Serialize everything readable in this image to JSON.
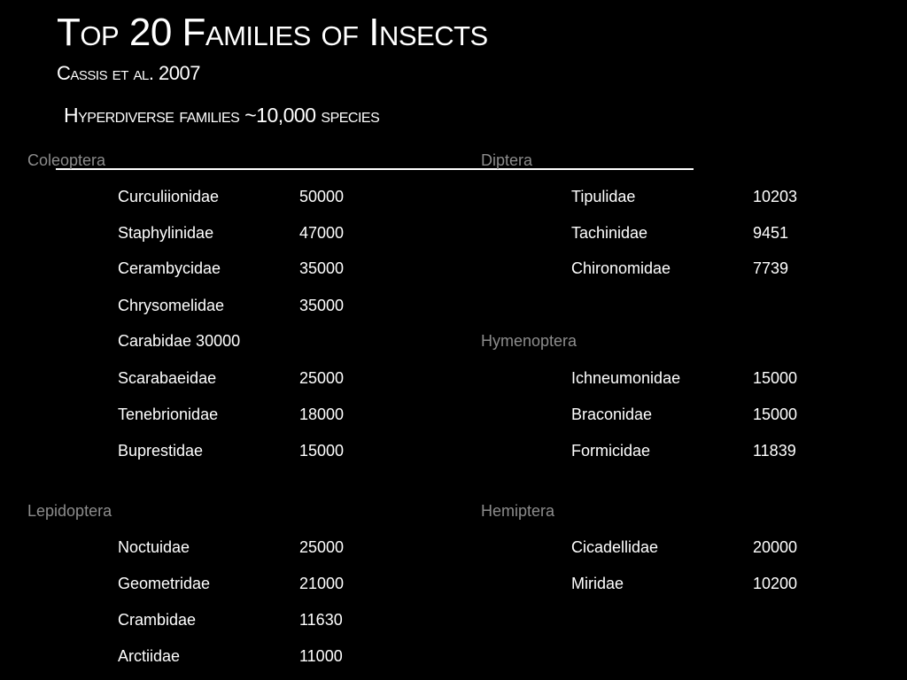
{
  "slide": {
    "title": "Top 20 Families of Insects",
    "subtitle": "Cassis et al. 2007",
    "heading": "Hyperdiverse families ~10,000 species"
  },
  "groups": {
    "coleoptera": {
      "order": "Coleoptera",
      "rows": [
        {
          "family": "Curculiionidae",
          "count": "50000"
        },
        {
          "family": "Staphylinidae",
          "count": "47000"
        },
        {
          "family": "Cerambycidae",
          "count": "35000"
        },
        {
          "family": "Chrysomelidae",
          "count": "35000"
        },
        {
          "family": "Carabidae 30000",
          "count": ""
        },
        {
          "family": "Scarabaeidae",
          "count": "25000"
        },
        {
          "family": "Tenebrionidae",
          "count": "18000"
        },
        {
          "family": "Buprestidae",
          "count": "15000"
        }
      ]
    },
    "lepidoptera": {
      "order": "Lepidoptera",
      "rows": [
        {
          "family": "Noctuidae",
          "count": "25000"
        },
        {
          "family": "Geometridae",
          "count": "21000"
        },
        {
          "family": "Crambidae",
          "count": "11630"
        },
        {
          "family": "Arctiidae",
          "count": "11000"
        }
      ]
    },
    "diptera": {
      "order": "Diptera",
      "rows": [
        {
          "family": "Tipulidae",
          "count": "10203"
        },
        {
          "family": "Tachinidae",
          "count": "9451"
        },
        {
          "family": "Chironomidae",
          "count": "7739"
        }
      ]
    },
    "hymenoptera": {
      "order": "Hymenoptera",
      "rows": [
        {
          "family": "Ichneumonidae",
          "count": "15000"
        },
        {
          "family": "Braconidae",
          "count": "15000"
        },
        {
          "family": "Formicidae",
          "count": "11839"
        }
      ]
    },
    "hemiptera": {
      "order": "Hemiptera",
      "rows": [
        {
          "family": "Cicadellidae",
          "count": "20000"
        },
        {
          "family": "Miridae",
          "count": "10200"
        }
      ]
    }
  },
  "colors": {
    "background": "#000000",
    "text": "#ffffff",
    "order_label": "#8c8c8c"
  }
}
